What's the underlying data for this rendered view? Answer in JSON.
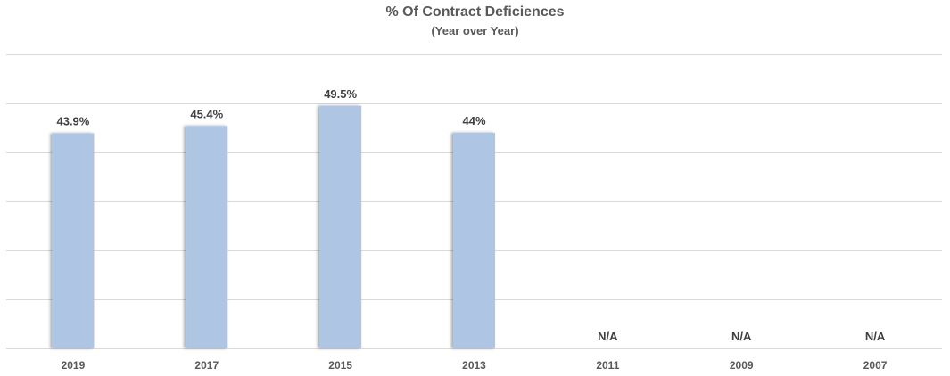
{
  "chart_data": {
    "type": "bar",
    "title": "% Of Contract Deficiences",
    "subtitle": "(Year over Year)",
    "xlabel": "",
    "ylabel": "",
    "categories": [
      "2019",
      "2017",
      "2015",
      "2013",
      "2011",
      "2009",
      "2007"
    ],
    "values": [
      43.9,
      45.4,
      49.5,
      44,
      null,
      null,
      null
    ],
    "data_labels": [
      "43.9%",
      "45.4%",
      "49.5%",
      "44%",
      "N/A",
      "N/A",
      "N/A"
    ],
    "ylim": [
      0,
      60
    ],
    "y_gridline_step": 10,
    "grid": true,
    "legend": "none",
    "bar_color": "#AEC5E4",
    "grid_color": "#D9D9D9"
  }
}
